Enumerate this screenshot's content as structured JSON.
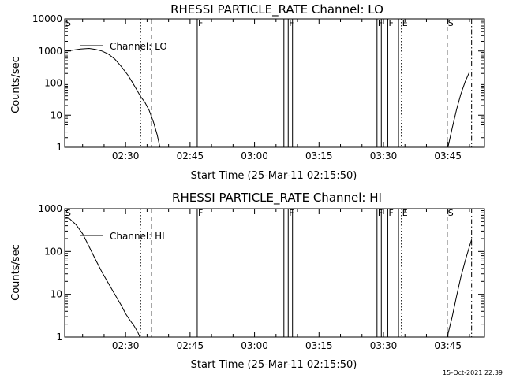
{
  "footer": {
    "timestamp": "15-Oct-2021 22:39"
  },
  "chart_data": [
    {
      "type": "line",
      "title": "RHESSI PARTICLE_RATE Channel: LO",
      "xlabel": "Start Time (25-Mar-11 02:15:50)",
      "ylabel": "Counts/sec",
      "yscale": "log",
      "ylim": [
        1,
        10000
      ],
      "xlim": [
        "02:15:50",
        "03:53:30"
      ],
      "x_ticks": [
        "02:30",
        "02:45",
        "03:00",
        "03:15",
        "03:30",
        "03:45"
      ],
      "y_ticks": [
        "1",
        "10",
        "100",
        "1000",
        "10000"
      ],
      "legend": {
        "entries": [
          "Channel: LO"
        ],
        "position": "top-left"
      },
      "series": [
        {
          "name": "Channel: LO",
          "segments": [
            {
              "x": [
                "02:15:50",
                "02:17:30",
                "02:19:30",
                "02:21:30",
                "02:23:00",
                "02:24:30",
                "02:26:00",
                "02:27:30",
                "02:29:00",
                "02:30:30",
                "02:31:30",
                "02:32:30",
                "02:33:30",
                "02:34:30",
                "02:35:30",
                "02:36:30",
                "02:37:20",
                "02:38:00"
              ],
              "y": [
                1000,
                1050,
                1150,
                1200,
                1120,
                1000,
                800,
                560,
                330,
                180,
                110,
                65,
                38,
                25,
                14,
                6,
                2.5,
                1
              ]
            },
            {
              "x": [
                "03:45:00",
                "03:46:00",
                "03:47:00",
                "03:48:00",
                "03:49:00",
                "03:50:00"
              ],
              "y": [
                1,
                4,
                15,
                45,
                110,
                220
              ]
            }
          ]
        }
      ],
      "markers": [
        {
          "x": "02:15:50",
          "style": "dashed",
          "label": "S"
        },
        {
          "x": "02:33:30",
          "style": "dotted",
          "label": ""
        },
        {
          "x": "02:36:00",
          "style": "dashed",
          "label": ""
        },
        {
          "x": "02:46:40",
          "style": "solid",
          "label": "F"
        },
        {
          "x": "03:06:50",
          "style": "solid",
          "label": ""
        },
        {
          "x": "03:07:50",
          "style": "solid",
          "label": "F"
        },
        {
          "x": "03:08:50",
          "style": "solid",
          "label": ""
        },
        {
          "x": "03:28:30",
          "style": "solid",
          "label": "F"
        },
        {
          "x": "03:29:30",
          "style": "solid",
          "label": ""
        },
        {
          "x": "03:31:00",
          "style": "solid",
          "label": "F"
        },
        {
          "x": "03:33:30",
          "style": "solid",
          "label": ""
        },
        {
          "x": "03:34:10",
          "style": "dotted",
          "label": "E"
        },
        {
          "x": "03:44:50",
          "style": "dashed",
          "label": "S"
        },
        {
          "x": "03:50:30",
          "style": "dashdot",
          "label": ""
        }
      ]
    },
    {
      "type": "line",
      "title": "RHESSI PARTICLE_RATE Channel: HI",
      "xlabel": "Start Time (25-Mar-11 02:15:50)",
      "ylabel": "Counts/sec",
      "yscale": "log",
      "ylim": [
        1,
        1000
      ],
      "xlim": [
        "02:15:50",
        "03:53:30"
      ],
      "x_ticks": [
        "02:30",
        "02:45",
        "03:00",
        "03:15",
        "03:30",
        "03:45"
      ],
      "y_ticks": [
        "1",
        "10",
        "100",
        "1000"
      ],
      "legend": {
        "entries": [
          "Channel: HI"
        ],
        "position": "top-left"
      },
      "series": [
        {
          "name": "Channel: HI",
          "segments": [
            {
              "x": [
                "02:15:50",
                "02:17:00",
                "02:18:30",
                "02:20:00",
                "02:21:30",
                "02:23:00",
                "02:24:30",
                "02:26:00",
                "02:27:30",
                "02:29:00",
                "02:30:00",
                "02:31:00",
                "02:32:00",
                "02:32:50",
                "02:33:20"
              ],
              "y": [
                650,
                580,
                420,
                260,
                130,
                65,
                33,
                18,
                10,
                5.5,
                3.5,
                2.5,
                1.8,
                1.3,
                1
              ]
            },
            {
              "x": [
                "03:44:50",
                "03:46:00",
                "03:47:00",
                "03:48:00",
                "03:49:00",
                "03:50:00",
                "03:50:30"
              ],
              "y": [
                1,
                3,
                9,
                25,
                60,
                130,
                190
              ]
            }
          ]
        }
      ],
      "markers": [
        {
          "x": "02:15:50",
          "style": "dashed",
          "label": "S"
        },
        {
          "x": "02:33:30",
          "style": "dotted",
          "label": ""
        },
        {
          "x": "02:36:00",
          "style": "dashed",
          "label": ""
        },
        {
          "x": "02:46:40",
          "style": "solid",
          "label": "F"
        },
        {
          "x": "03:06:50",
          "style": "solid",
          "label": ""
        },
        {
          "x": "03:07:50",
          "style": "solid",
          "label": "F"
        },
        {
          "x": "03:08:50",
          "style": "solid",
          "label": ""
        },
        {
          "x": "03:28:30",
          "style": "solid",
          "label": "F"
        },
        {
          "x": "03:29:30",
          "style": "solid",
          "label": ""
        },
        {
          "x": "03:31:00",
          "style": "solid",
          "label": "F"
        },
        {
          "x": "03:33:30",
          "style": "solid",
          "label": ""
        },
        {
          "x": "03:34:10",
          "style": "dotted",
          "label": "E"
        },
        {
          "x": "03:44:50",
          "style": "dashed",
          "label": "S"
        },
        {
          "x": "03:50:30",
          "style": "dashdot",
          "label": ""
        }
      ]
    }
  ]
}
